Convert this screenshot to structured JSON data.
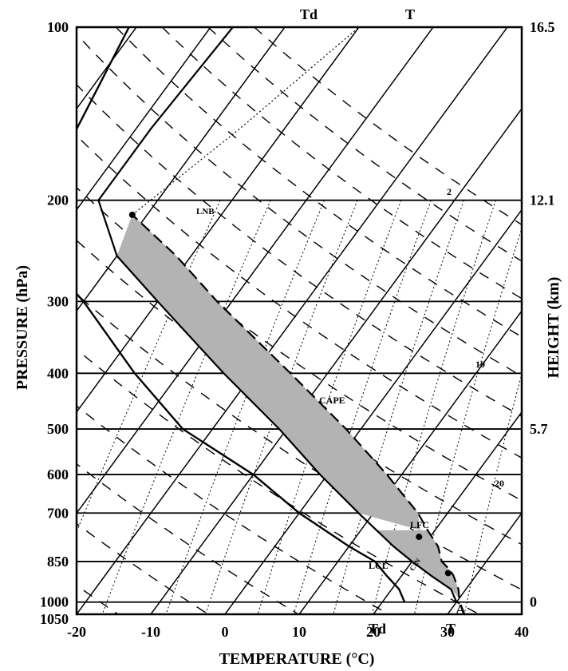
{
  "chart_data": {
    "type": "line",
    "title": "",
    "xlabel": "TEMPERATURE (°C)",
    "ylabel": "PRESSURE (hPa)",
    "y2label": "HEIGHT (km)",
    "xlim": [
      -20,
      40
    ],
    "x_ticks": [
      "-20",
      "-10",
      "0",
      "10",
      "20",
      "30",
      "40"
    ],
    "pressure_levels": [
      100,
      200,
      300,
      400,
      500,
      600,
      700,
      850,
      1000
    ],
    "pressure_labels": [
      "100",
      "200",
      "300",
      "400",
      "500",
      "600",
      "700",
      "850",
      "1000",
      "1050"
    ],
    "height_labels": [
      {
        "p": 100,
        "text": "16.5"
      },
      {
        "p": 200,
        "text": "12.1"
      },
      {
        "p": 500,
        "text": "5.7"
      },
      {
        "p": 1000,
        "text": "0"
      }
    ],
    "mixing_ratio_labels": [
      "2",
      "10",
      "20"
    ],
    "curve_labels": {
      "t_top": "T",
      "td_top": "Td",
      "t_bottom": "T",
      "td_bottom": "Td",
      "a": "A"
    },
    "point_labels": {
      "lnb": "LNB",
      "lfc": "LFC",
      "lcl": "LCL",
      "cape": "CAPE",
      "cin": "CIN"
    },
    "colors": {
      "axes": "#000000",
      "cape_fill": "#b3b3b3"
    }
  }
}
